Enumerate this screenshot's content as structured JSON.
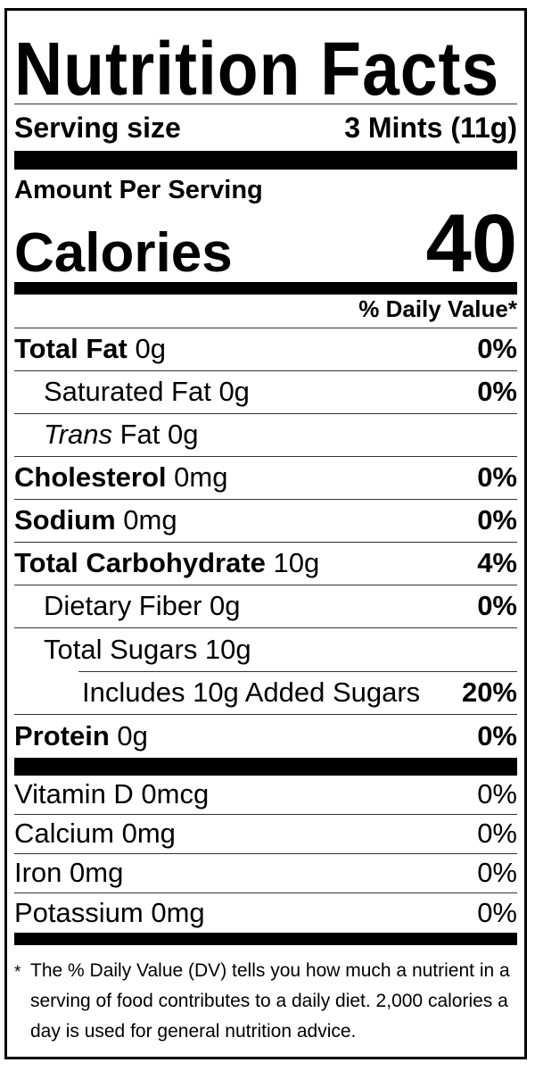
{
  "label": {
    "title": "Nutrition Facts",
    "serving": {
      "label": "Serving size",
      "value": "3 Mints (11g)"
    },
    "amount_per_serving": "Amount Per Serving",
    "calories": {
      "label": "Calories",
      "value": "40"
    },
    "daily_value_header": "% Daily Value*",
    "rows": [
      {
        "b": "Total Fat",
        "i": "",
        "r": " 0g",
        "pct": "0%"
      },
      {
        "b": "",
        "i": "",
        "r": "Saturated Fat 0g",
        "pct": "0%"
      },
      {
        "b": "",
        "i": "Trans",
        "r": " Fat 0g",
        "pct": ""
      },
      {
        "b": "Cholesterol",
        "i": "",
        "r": " 0mg",
        "pct": "0%"
      },
      {
        "b": "Sodium",
        "i": "",
        "r": " 0mg",
        "pct": "0%"
      },
      {
        "b": "Total Carbohydrate",
        "i": "",
        "r": " 10g",
        "pct": "4%"
      },
      {
        "b": "",
        "i": "",
        "r": "Dietary Fiber 0g",
        "pct": "0%"
      },
      {
        "b": "",
        "i": "",
        "r": "Total Sugars 10g",
        "pct": ""
      },
      {
        "b": "",
        "i": "",
        "r": "Includes 10g Added Sugars",
        "pct": "20%"
      },
      {
        "b": "Protein",
        "i": "",
        "r": " 0g",
        "pct": "0%"
      },
      {
        "b": "",
        "i": "",
        "r": "Vitamin D 0mcg",
        "pct": "0%"
      },
      {
        "b": "",
        "i": "",
        "r": "Calcium 0mg",
        "pct": "0%"
      },
      {
        "b": "",
        "i": "",
        "r": "Iron 0mg",
        "pct": "0%"
      },
      {
        "b": "",
        "i": "",
        "r": "Potassium 0mg",
        "pct": "0%"
      }
    ],
    "footnote": {
      "star": "*",
      "text": "The % Daily Value (DV) tells you how much a nutrient in a serving of food contributes to a daily diet. 2,000 calories a day is used for general nutrition advice."
    },
    "colors": {
      "text": "#000000",
      "background": "#ffffff",
      "border": "#000000"
    }
  }
}
